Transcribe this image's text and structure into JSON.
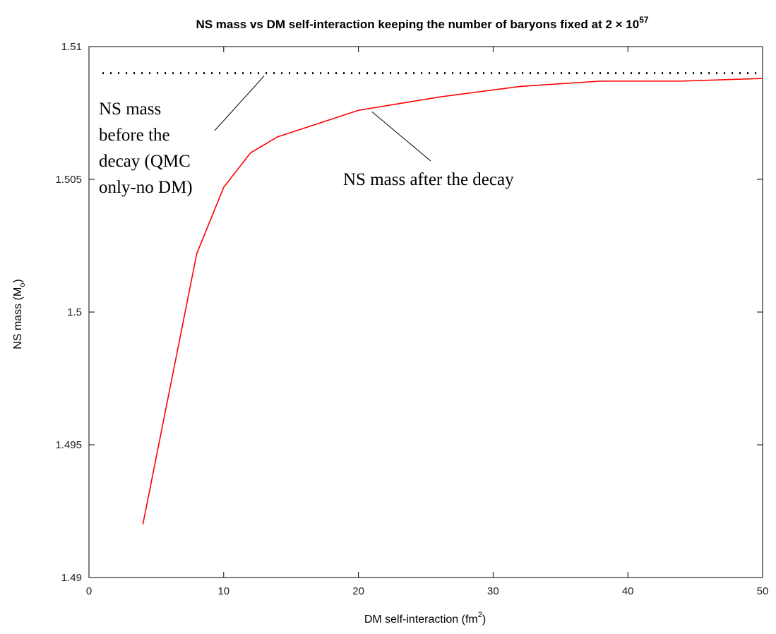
{
  "chart_data": {
    "type": "line",
    "title_main": "NS mass vs DM self-interaction keeping the number of baryons fixed at 2 × 10",
    "title_exponent": "57",
    "xlabel_main": "DM self-interaction (fm",
    "xlabel_sup": "2",
    "xlabel_end": ")",
    "ylabel_main": "NS mass (M",
    "ylabel_sub": "o",
    "ylabel_end": ")",
    "xlim": [
      0,
      50
    ],
    "ylim": [
      1.49,
      1.51
    ],
    "x_ticks": [
      0,
      10,
      20,
      30,
      40,
      50
    ],
    "x_tick_labels": [
      "0",
      "10",
      "20",
      "30",
      "40",
      "50"
    ],
    "y_ticks": [
      1.49,
      1.495,
      1.5,
      1.505,
      1.51
    ],
    "y_tick_labels": [
      "1.49",
      "1.495",
      "1.5",
      "1.505",
      "1.51"
    ],
    "grid": false,
    "series": [
      {
        "style": "dotted",
        "color": "#000000",
        "x": [
          1,
          50
        ],
        "y": [
          1.509,
          1.509
        ]
      },
      {
        "style": "solid",
        "color": "#ff0000",
        "x": [
          4,
          8,
          10,
          12,
          14,
          20,
          26,
          32,
          38,
          44,
          50
        ],
        "y": [
          1.492,
          1.5022,
          1.5047,
          1.506,
          1.5066,
          1.5076,
          1.5081,
          1.5085,
          1.5087,
          1.5087,
          1.5088
        ]
      }
    ],
    "annotations": [
      {
        "lines": [
          "NS mass",
          "before the",
          "decay (QMC",
          "only-no DM)"
        ],
        "arrow_to": [
          13,
          1.509
        ]
      },
      {
        "lines": [
          "NS mass after the decay"
        ],
        "arrow_to": [
          21,
          1.5076
        ]
      }
    ]
  }
}
